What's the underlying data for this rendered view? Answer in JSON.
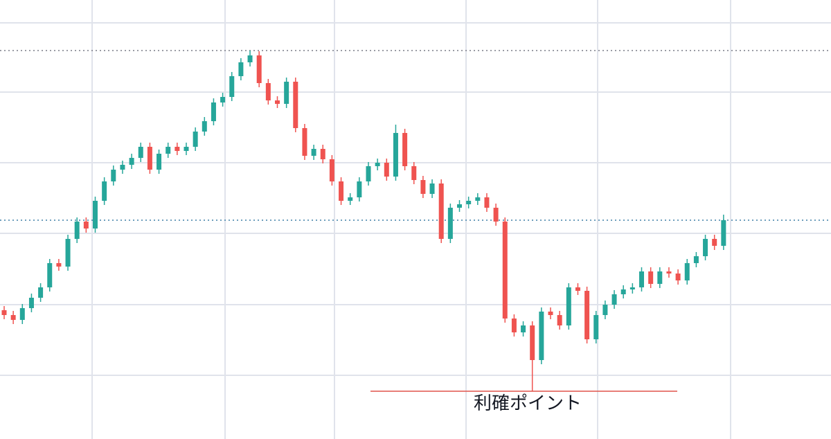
{
  "chart_data": {
    "type": "candlestick",
    "up_color": "#26a69a",
    "down_color": "#ef5350",
    "open": [
      186,
      179,
      172,
      189,
      204,
      219,
      254,
      249,
      289,
      314,
      304,
      344,
      372,
      389,
      396,
      406,
      422,
      389,
      412,
      422,
      416,
      422,
      444,
      459,
      486,
      494,
      524,
      544,
      554,
      514,
      489,
      484,
      516,
      449,
      409,
      419,
      404,
      372,
      344,
      349,
      372,
      394,
      399,
      379,
      442,
      394,
      374,
      354,
      369,
      289,
      334,
      339,
      344,
      349,
      334,
      314,
      174,
      154,
      164,
      114,
      184,
      179,
      164,
      219,
      214,
      144,
      179,
      194,
      209,
      216,
      219,
      242,
      224,
      242,
      239,
      229,
      254,
      264,
      289,
      279
    ],
    "high": [
      192,
      185,
      195,
      210,
      225,
      260,
      260,
      295,
      320,
      320,
      350,
      378,
      395,
      402,
      412,
      428,
      428,
      418,
      428,
      428,
      428,
      450,
      465,
      492,
      500,
      530,
      550,
      561,
      560,
      520,
      495,
      522,
      522,
      455,
      425,
      425,
      410,
      378,
      355,
      378,
      400,
      405,
      405,
      454,
      448,
      400,
      380,
      375,
      375,
      340,
      345,
      350,
      355,
      355,
      340,
      320,
      180,
      170,
      170,
      190,
      190,
      185,
      225,
      225,
      220,
      185,
      200,
      215,
      222,
      225,
      248,
      248,
      248,
      248,
      245,
      260,
      270,
      295,
      295,
      324
    ],
    "low": [
      173,
      166,
      166,
      183,
      198,
      213,
      243,
      243,
      283,
      298,
      298,
      338,
      366,
      383,
      390,
      400,
      383,
      383,
      406,
      410,
      410,
      416,
      438,
      453,
      480,
      488,
      518,
      538,
      508,
      483,
      478,
      478,
      443,
      403,
      403,
      398,
      366,
      338,
      338,
      343,
      366,
      388,
      373,
      373,
      388,
      368,
      348,
      348,
      283,
      283,
      328,
      333,
      338,
      328,
      308,
      168,
      148,
      148,
      69,
      108,
      173,
      158,
      158,
      208,
      138,
      138,
      173,
      188,
      203,
      210,
      213,
      218,
      218,
      233,
      223,
      223,
      248,
      258,
      273,
      273
    ],
    "close": [
      179,
      172,
      189,
      204,
      219,
      254,
      249,
      289,
      314,
      304,
      344,
      372,
      389,
      396,
      406,
      422,
      389,
      412,
      422,
      416,
      422,
      444,
      459,
      486,
      494,
      524,
      544,
      554,
      514,
      489,
      484,
      516,
      449,
      409,
      419,
      404,
      372,
      344,
      349,
      372,
      394,
      399,
      379,
      442,
      394,
      374,
      354,
      369,
      289,
      334,
      339,
      344,
      349,
      334,
      314,
      174,
      154,
      164,
      114,
      184,
      179,
      164,
      219,
      214,
      144,
      179,
      194,
      209,
      216,
      219,
      242,
      224,
      242,
      239,
      229,
      254,
      264,
      289,
      279,
      316
    ],
    "ylim": [
      0,
      634
    ],
    "ygrid": [
      601,
      501,
      399,
      297,
      194,
      92
    ],
    "price_lines": [
      {
        "value": 561,
        "color": "#787b86"
      },
      {
        "value": 316,
        "color": "#3d7fa6"
      }
    ],
    "annotation": {
      "text": "利確ポイント",
      "value": 69,
      "color": "#e0544a"
    }
  }
}
